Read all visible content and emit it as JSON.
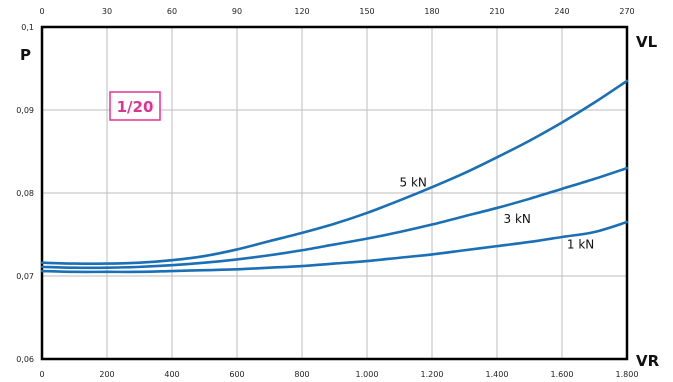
{
  "chart_data": {
    "type": "line",
    "title": "",
    "ylabel": "P",
    "xlabel": "VR",
    "x2label": "VL",
    "badge": "1/20",
    "ylim": [
      0.06,
      0.1
    ],
    "xlim": [
      0,
      1800
    ],
    "x2lim": [
      0,
      270
    ],
    "yticks": [
      0.06,
      0.07,
      0.08,
      0.09,
      0.1
    ],
    "ytick_labels": [
      "0,06",
      "0,07",
      "0,08",
      "0,09",
      "0,1"
    ],
    "xticks": [
      0,
      200,
      400,
      600,
      800,
      1000,
      1200,
      1400,
      1600,
      1800
    ],
    "xtick_labels": [
      "0",
      "200",
      "400",
      "600",
      "800",
      "1.000",
      "1.200",
      "1.400",
      "1.600",
      "1.800"
    ],
    "x2ticks": [
      0,
      30,
      60,
      90,
      120,
      150,
      180,
      210,
      240,
      270
    ],
    "x2tick_labels": [
      "0",
      "30",
      "60",
      "90",
      "120",
      "150",
      "180",
      "210",
      "240",
      "270"
    ],
    "grid": true,
    "line_color": "#1a6fb5",
    "badge_color": "#e0338f",
    "x": [
      0,
      100,
      200,
      300,
      400,
      500,
      600,
      700,
      800,
      900,
      1000,
      1100,
      1200,
      1300,
      1400,
      1500,
      1600,
      1700,
      1800
    ],
    "series": [
      {
        "name": "5 kN",
        "label_at": [
          1100,
          0.0808
        ],
        "values": [
          0.0716,
          0.0715,
          0.0715,
          0.0716,
          0.0719,
          0.0724,
          0.0732,
          0.0742,
          0.0752,
          0.0763,
          0.0776,
          0.0791,
          0.0807,
          0.0824,
          0.0843,
          0.0863,
          0.0885,
          0.0909,
          0.0935
        ]
      },
      {
        "name": "3 kN",
        "label_at": [
          1420,
          0.0764
        ],
        "values": [
          0.0711,
          0.071,
          0.071,
          0.0711,
          0.0713,
          0.0716,
          0.072,
          0.0725,
          0.0731,
          0.0738,
          0.0745,
          0.0753,
          0.0762,
          0.0772,
          0.0782,
          0.0793,
          0.0805,
          0.0817,
          0.083
        ]
      },
      {
        "name": "1 kN",
        "label_at": [
          1615,
          0.0733
        ],
        "values": [
          0.0706,
          0.0705,
          0.0705,
          0.0705,
          0.0706,
          0.0707,
          0.0708,
          0.071,
          0.0712,
          0.0715,
          0.0718,
          0.0722,
          0.0726,
          0.0731,
          0.0736,
          0.0741,
          0.0747,
          0.0753,
          0.0765
        ]
      }
    ]
  }
}
